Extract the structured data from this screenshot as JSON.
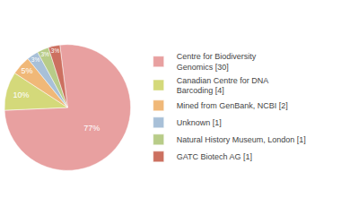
{
  "chart_data": {
    "type": "pie",
    "categories": [
      "Centre for Biodiversity\nGenomics [30]",
      "Canadian Centre for DNA\nBarcoding [4]",
      "Mined from GenBank, NCBI [2]",
      "Unknown [1]",
      "Natural History Museum, London [1]",
      "GATC Biotech AG [1]"
    ],
    "values": [
      77,
      10,
      5,
      3,
      3,
      3
    ],
    "value_labels": [
      "77%",
      "10%",
      "5%",
      "3%",
      "3%",
      "3%"
    ],
    "colors": [
      "#e8a0a0",
      "#d4d97a",
      "#f0b878",
      "#a8c0d8",
      "#b8cc88",
      "#cc7060"
    ],
    "data_labels": true,
    "legend": "right"
  }
}
